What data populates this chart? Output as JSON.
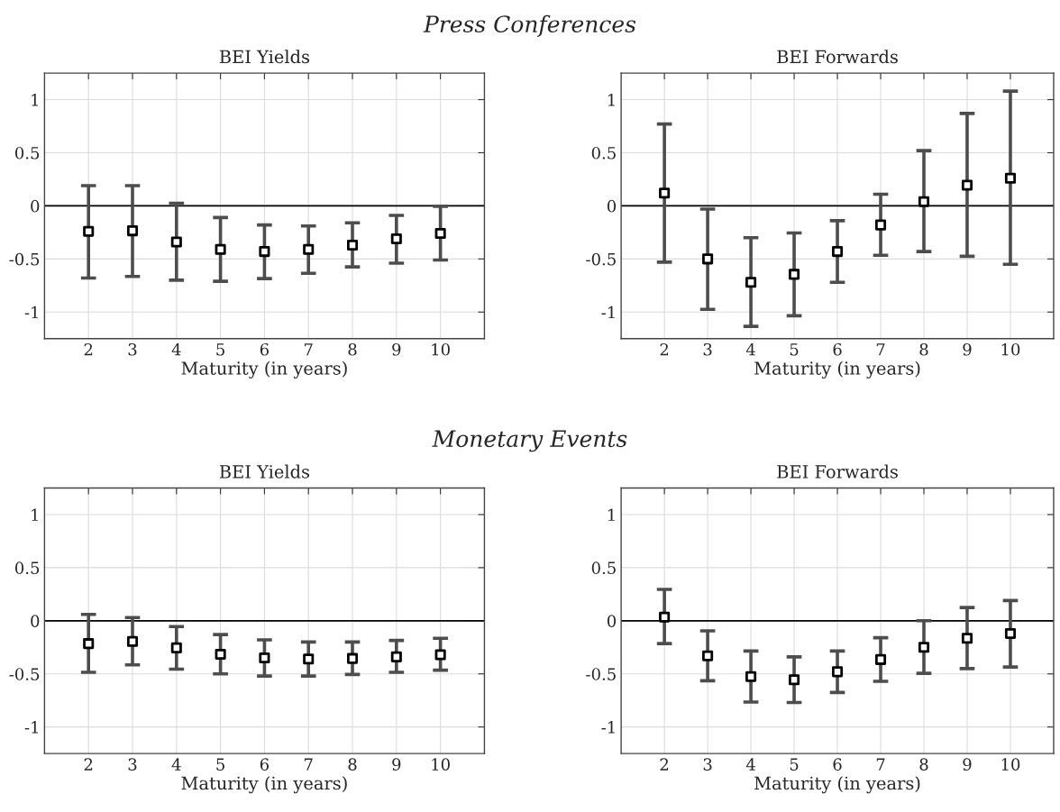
{
  "chart_data": [
    {
      "type": "scatter",
      "subtitle": "Press Conferences",
      "title": "BEI Yields",
      "xlabel": "Maturity (in years)",
      "x": [
        2,
        3,
        4,
        5,
        6,
        7,
        8,
        9,
        10
      ],
      "xlim": [
        1,
        11
      ],
      "xticks": [
        2,
        3,
        4,
        5,
        6,
        7,
        8,
        9,
        10
      ],
      "ylim": [
        -1.25,
        1.25
      ],
      "yticks": [
        -1,
        -0.5,
        0,
        0.5,
        1
      ],
      "grid": true,
      "marker": "square",
      "ref_lines": [
        {
          "axis": "y",
          "value": 0,
          "color": "#000000"
        }
      ],
      "series": [
        {
          "color": "#000000",
          "values": [
            -0.24,
            -0.235,
            -0.34,
            -0.41,
            -0.43,
            -0.41,
            -0.37,
            -0.31,
            -0.26
          ],
          "errors": [
            [
              -0.68,
              0.19
            ],
            [
              -0.665,
              0.19
            ],
            [
              -0.7,
              0.025
            ],
            [
              -0.71,
              -0.11
            ],
            [
              -0.685,
              -0.18
            ],
            [
              -0.635,
              -0.19
            ],
            [
              -0.575,
              -0.16
            ],
            [
              -0.54,
              -0.09
            ],
            [
              -0.51,
              -0.005
            ]
          ]
        }
      ]
    },
    {
      "type": "scatter",
      "title": "BEI Forwards",
      "xlabel": "Maturity (in years)",
      "x": [
        2,
        3,
        4,
        5,
        6,
        7,
        8,
        9,
        10
      ],
      "xlim": [
        1,
        11
      ],
      "xticks": [
        2,
        3,
        4,
        5,
        6,
        7,
        8,
        9,
        10
      ],
      "ylim": [
        -1.25,
        1.25
      ],
      "yticks": [
        -1,
        -0.5,
        0,
        0.5,
        1
      ],
      "grid": true,
      "marker": "square",
      "ref_lines": [
        {
          "axis": "y",
          "value": 0,
          "color": "#000000"
        }
      ],
      "series": [
        {
          "color": "#000000",
          "values": [
            0.12,
            -0.5,
            -0.72,
            -0.645,
            -0.43,
            -0.18,
            0.04,
            0.195,
            0.26
          ],
          "errors": [
            [
              -0.53,
              0.77
            ],
            [
              -0.975,
              -0.03
            ],
            [
              -1.135,
              -0.3
            ],
            [
              -1.035,
              -0.255
            ],
            [
              -0.72,
              -0.14
            ],
            [
              -0.465,
              0.11
            ],
            [
              -0.43,
              0.52
            ],
            [
              -0.475,
              0.87
            ],
            [
              -0.55,
              1.08
            ]
          ]
        }
      ]
    },
    {
      "type": "scatter",
      "subtitle": "Monetary Events",
      "title": "BEI Yields",
      "xlabel": "Maturity (in years)",
      "x": [
        2,
        3,
        4,
        5,
        6,
        7,
        8,
        9,
        10
      ],
      "xlim": [
        1,
        11
      ],
      "xticks": [
        2,
        3,
        4,
        5,
        6,
        7,
        8,
        9,
        10
      ],
      "ylim": [
        -1.25,
        1.25
      ],
      "yticks": [
        -1,
        -0.5,
        0,
        0.5,
        1
      ],
      "grid": true,
      "marker": "square",
      "ref_lines": [
        {
          "axis": "y",
          "value": 0,
          "color": "#000000"
        }
      ],
      "series": [
        {
          "color": "#000000",
          "values": [
            -0.215,
            -0.195,
            -0.255,
            -0.315,
            -0.35,
            -0.36,
            -0.355,
            -0.34,
            -0.32
          ],
          "errors": [
            [
              -0.485,
              0.06
            ],
            [
              -0.415,
              0.03
            ],
            [
              -0.455,
              -0.055
            ],
            [
              -0.5,
              -0.13
            ],
            [
              -0.52,
              -0.18
            ],
            [
              -0.52,
              -0.2
            ],
            [
              -0.505,
              -0.2
            ],
            [
              -0.485,
              -0.185
            ],
            [
              -0.465,
              -0.165
            ]
          ]
        }
      ]
    },
    {
      "type": "scatter",
      "title": "BEI Forwards",
      "xlabel": "Maturity (in years)",
      "x": [
        2,
        3,
        4,
        5,
        6,
        7,
        8,
        9,
        10
      ],
      "xlim": [
        1,
        11
      ],
      "xticks": [
        2,
        3,
        4,
        5,
        6,
        7,
        8,
        9,
        10
      ],
      "ylim": [
        -1.25,
        1.25
      ],
      "yticks": [
        -1,
        -0.5,
        0,
        0.5,
        1
      ],
      "grid": true,
      "marker": "square",
      "ref_lines": [
        {
          "axis": "y",
          "value": 0,
          "color": "#000000"
        }
      ],
      "series": [
        {
          "color": "#000000",
          "values": [
            0.035,
            -0.33,
            -0.525,
            -0.555,
            -0.48,
            -0.365,
            -0.25,
            -0.165,
            -0.12
          ],
          "errors": [
            [
              -0.215,
              0.295
            ],
            [
              -0.565,
              -0.095
            ],
            [
              -0.765,
              -0.285
            ],
            [
              -0.77,
              -0.34
            ],
            [
              -0.675,
              -0.285
            ],
            [
              -0.57,
              -0.16
            ],
            [
              -0.495,
              0.0
            ],
            [
              -0.45,
              0.125
            ],
            [
              -0.435,
              0.19
            ]
          ]
        }
      ]
    }
  ]
}
